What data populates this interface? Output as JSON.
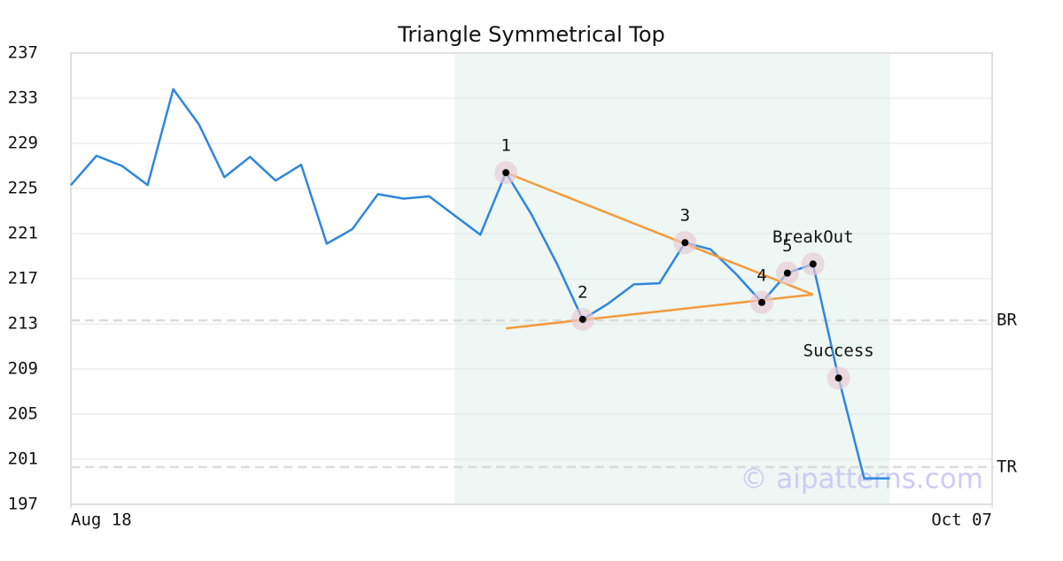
{
  "chart_data": {
    "type": "line",
    "title": "Triangle Symmetrical Top",
    "x": [
      0,
      1,
      2,
      3,
      4,
      5,
      6,
      7,
      8,
      9,
      10,
      11,
      12,
      13,
      14,
      15,
      16,
      17,
      18,
      19,
      20,
      21,
      22,
      23,
      24,
      25,
      26,
      27,
      28,
      29,
      30,
      31,
      32
    ],
    "series": [
      {
        "color": "#2e86de",
        "values": [
          225.3,
          227.9,
          227.0,
          225.3,
          233.8,
          230.7,
          226.0,
          227.8,
          225.7,
          227.1,
          220.1,
          221.4,
          224.5,
          224.1,
          224.3,
          222.6,
          220.9,
          226.4,
          222.7,
          218.3,
          213.4,
          214.8,
          216.5,
          216.6,
          220.2,
          219.6,
          217.4,
          214.9,
          217.5,
          218.3,
          208.2,
          199.3,
          199.3
        ]
      }
    ],
    "xlim": [
      0,
      36
    ],
    "xticks": [
      {
        "value": 0,
        "label": "Aug 18"
      },
      {
        "value": 36,
        "label": "Oct 07"
      }
    ],
    "ylim": [
      197,
      237
    ],
    "yticks": [
      197,
      201,
      205,
      209,
      213,
      217,
      221,
      225,
      229,
      233,
      237
    ],
    "grid": true,
    "shaded_span": {
      "x": [
        15,
        32
      ],
      "color": "#eef7f3"
    },
    "pattern_points": [
      {
        "label": "1",
        "x": 17,
        "y": 226.4
      },
      {
        "label": "2",
        "x": 20,
        "y": 213.4
      },
      {
        "label": "3",
        "x": 24,
        "y": 220.2
      },
      {
        "label": "4",
        "x": 27,
        "y": 214.9
      },
      {
        "label": "5",
        "x": 28,
        "y": 217.5
      },
      {
        "label": "BreakOut",
        "x": 29,
        "y": 218.3
      },
      {
        "label": "Success",
        "x": 30,
        "y": 208.2
      }
    ],
    "trend_lines": {
      "color": "#f59a3c",
      "lines": [
        {
          "x": [
            17,
            29
          ],
          "y": [
            226.4,
            215.6
          ]
        },
        {
          "x": [
            17,
            29
          ],
          "y": [
            212.6,
            215.6
          ]
        }
      ]
    },
    "reference_lines": [
      {
        "label": "BR",
        "value": 213.3
      },
      {
        "label": "TR",
        "value": 200.3
      }
    ],
    "watermark": "© aipatterns.com"
  }
}
